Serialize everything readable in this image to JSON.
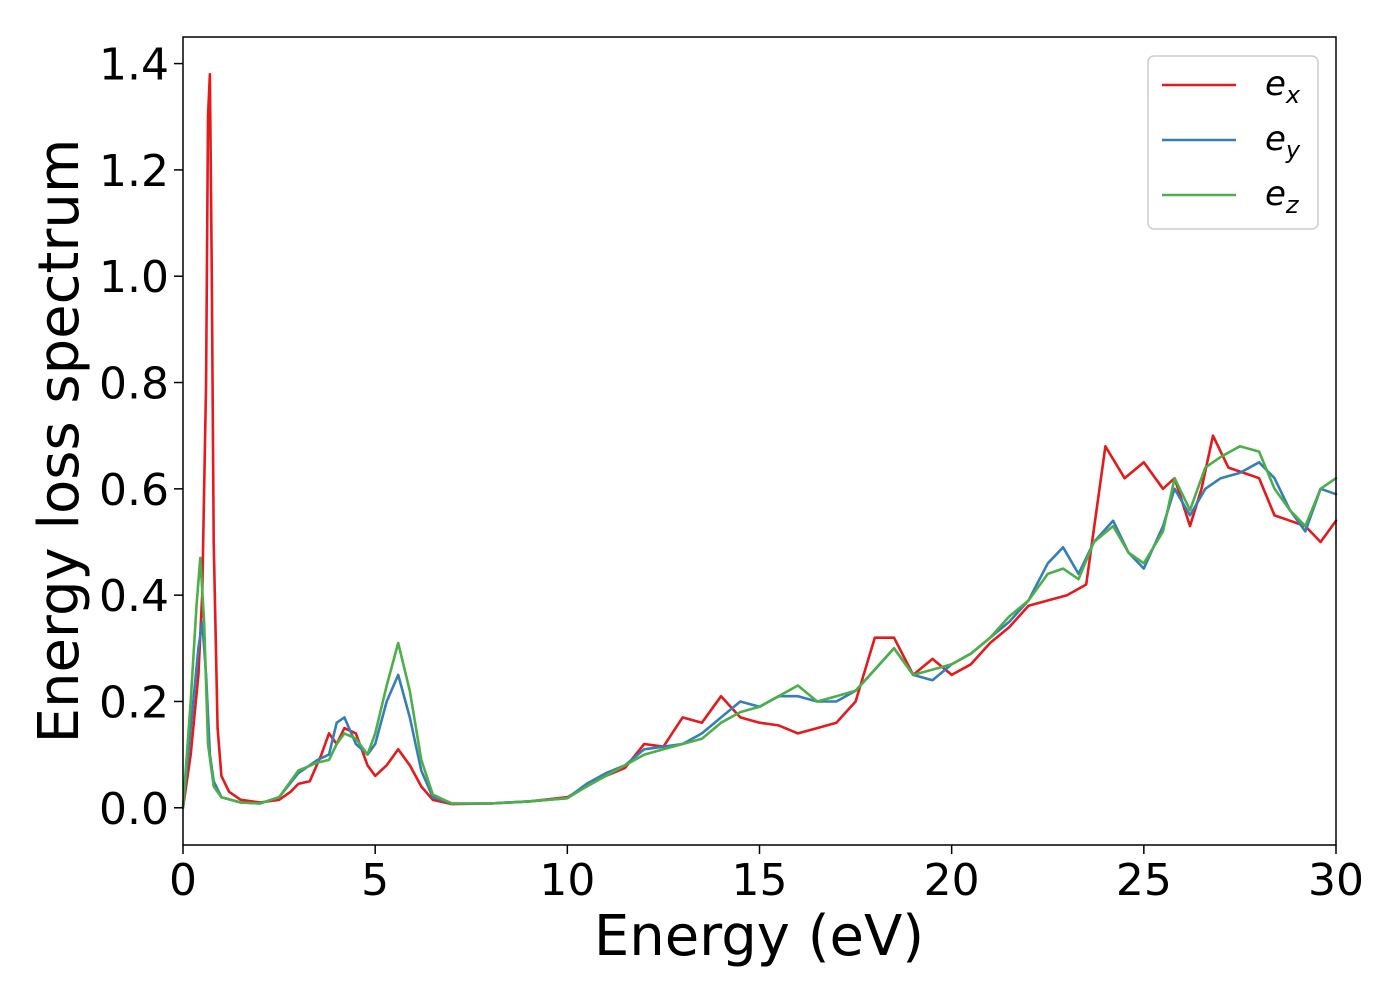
{
  "chart_data": {
    "type": "line",
    "title": "",
    "xlabel": "Energy (eV)",
    "ylabel": "Energy loss spectrum",
    "xlim": [
      0,
      30
    ],
    "ylim": [
      -0.07,
      1.45
    ],
    "xticks": [
      0,
      5,
      10,
      15,
      20,
      25,
      30
    ],
    "xtick_labels": [
      "0",
      "5",
      "10",
      "15",
      "20",
      "25",
      "30"
    ],
    "yticks": [
      0.0,
      0.2,
      0.4,
      0.6,
      0.8,
      1.0,
      1.2,
      1.4
    ],
    "ytick_labels": [
      "0.0",
      "0.2",
      "0.4",
      "0.6",
      "0.8",
      "1.0",
      "1.2",
      "1.4"
    ],
    "grid": false,
    "legend_position": "top-right",
    "series": [
      {
        "name": "e_x",
        "label_main": "e",
        "label_sub": "x",
        "color": "#e41a1c",
        "x": [
          0,
          0.2,
          0.4,
          0.5,
          0.6,
          0.65,
          0.7,
          0.75,
          0.8,
          0.9,
          1.0,
          1.2,
          1.5,
          2.0,
          2.5,
          2.8,
          3.0,
          3.3,
          3.6,
          3.8,
          4.0,
          4.2,
          4.5,
          4.8,
          5.0,
          5.3,
          5.6,
          5.9,
          6.2,
          6.5,
          7.0,
          8.0,
          9.0,
          10.0,
          10.5,
          11.0,
          11.5,
          12.0,
          12.5,
          13.0,
          13.5,
          14.0,
          14.5,
          15.0,
          15.5,
          16.0,
          16.5,
          17.0,
          17.5,
          18.0,
          18.5,
          19.0,
          19.5,
          20.0,
          20.5,
          21.0,
          21.5,
          22.0,
          22.5,
          23.0,
          23.5,
          24.0,
          24.5,
          25.0,
          25.5,
          25.8,
          26.2,
          26.5,
          26.8,
          27.2,
          27.6,
          28.0,
          28.4,
          28.8,
          29.2,
          29.6,
          30.0
        ],
        "y": [
          0.0,
          0.1,
          0.25,
          0.4,
          0.8,
          1.3,
          1.38,
          1.0,
          0.5,
          0.15,
          0.06,
          0.03,
          0.015,
          0.01,
          0.015,
          0.03,
          0.045,
          0.05,
          0.1,
          0.14,
          0.12,
          0.15,
          0.14,
          0.08,
          0.06,
          0.08,
          0.11,
          0.08,
          0.04,
          0.015,
          0.007,
          0.008,
          0.012,
          0.02,
          0.04,
          0.06,
          0.075,
          0.12,
          0.115,
          0.17,
          0.16,
          0.21,
          0.17,
          0.16,
          0.155,
          0.14,
          0.15,
          0.16,
          0.2,
          0.32,
          0.32,
          0.25,
          0.28,
          0.25,
          0.27,
          0.31,
          0.34,
          0.38,
          0.39,
          0.4,
          0.42,
          0.68,
          0.62,
          0.65,
          0.6,
          0.62,
          0.53,
          0.6,
          0.7,
          0.64,
          0.63,
          0.62,
          0.55,
          0.54,
          0.53,
          0.5,
          0.54
        ]
      },
      {
        "name": "e_y",
        "label_main": "e",
        "label_sub": "y",
        "color": "#377eb8",
        "x": [
          0,
          0.2,
          0.4,
          0.5,
          0.6,
          0.7,
          0.8,
          1.0,
          1.5,
          2.0,
          2.5,
          3.0,
          3.5,
          3.8,
          4.0,
          4.2,
          4.5,
          4.8,
          5.0,
          5.3,
          5.6,
          5.9,
          6.2,
          6.5,
          7.0,
          8.0,
          9.0,
          10.0,
          10.5,
          11.0,
          11.5,
          12.0,
          12.5,
          13.0,
          13.5,
          14.0,
          14.5,
          15.0,
          15.5,
          16.0,
          16.5,
          17.0,
          17.5,
          18.0,
          18.5,
          19.0,
          19.5,
          20.0,
          20.5,
          21.0,
          21.5,
          22.0,
          22.5,
          22.9,
          23.3,
          23.7,
          24.2,
          24.6,
          25.0,
          25.5,
          25.8,
          26.2,
          26.6,
          27.0,
          27.5,
          28.0,
          28.4,
          28.8,
          29.2,
          29.6,
          30.0
        ],
        "y": [
          0.0,
          0.15,
          0.3,
          0.35,
          0.25,
          0.1,
          0.05,
          0.02,
          0.01,
          0.008,
          0.02,
          0.065,
          0.09,
          0.1,
          0.16,
          0.17,
          0.12,
          0.1,
          0.12,
          0.2,
          0.25,
          0.17,
          0.07,
          0.02,
          0.008,
          0.008,
          0.012,
          0.018,
          0.045,
          0.065,
          0.08,
          0.11,
          0.115,
          0.12,
          0.14,
          0.17,
          0.2,
          0.19,
          0.21,
          0.21,
          0.2,
          0.2,
          0.22,
          0.26,
          0.3,
          0.25,
          0.24,
          0.27,
          0.29,
          0.32,
          0.35,
          0.39,
          0.46,
          0.49,
          0.44,
          0.5,
          0.54,
          0.48,
          0.45,
          0.53,
          0.6,
          0.55,
          0.6,
          0.62,
          0.63,
          0.65,
          0.62,
          0.56,
          0.52,
          0.6,
          0.59
        ]
      },
      {
        "name": "e_z",
        "label_main": "e",
        "label_sub": "z",
        "color": "#4daf4a",
        "x": [
          0,
          0.2,
          0.35,
          0.45,
          0.55,
          0.65,
          0.8,
          1.0,
          1.5,
          2.0,
          2.5,
          3.0,
          3.5,
          3.8,
          4.0,
          4.2,
          4.5,
          4.8,
          5.0,
          5.3,
          5.6,
          5.9,
          6.2,
          6.5,
          7.0,
          8.0,
          9.0,
          10.0,
          10.5,
          11.0,
          11.5,
          12.0,
          12.5,
          13.0,
          13.5,
          14.0,
          14.5,
          15.0,
          15.5,
          16.0,
          16.5,
          17.0,
          17.5,
          18.0,
          18.5,
          19.0,
          19.5,
          20.0,
          20.5,
          21.0,
          21.5,
          22.0,
          22.5,
          22.9,
          23.3,
          23.7,
          24.2,
          24.6,
          25.0,
          25.5,
          25.8,
          26.2,
          26.6,
          27.0,
          27.5,
          28.0,
          28.4,
          28.8,
          29.2,
          29.6,
          30.0
        ],
        "y": [
          0.0,
          0.2,
          0.38,
          0.47,
          0.35,
          0.12,
          0.04,
          0.02,
          0.01,
          0.008,
          0.02,
          0.07,
          0.085,
          0.09,
          0.12,
          0.14,
          0.13,
          0.1,
          0.14,
          0.23,
          0.31,
          0.22,
          0.09,
          0.025,
          0.008,
          0.008,
          0.012,
          0.018,
          0.04,
          0.06,
          0.08,
          0.1,
          0.11,
          0.12,
          0.13,
          0.16,
          0.18,
          0.19,
          0.21,
          0.23,
          0.2,
          0.21,
          0.22,
          0.26,
          0.3,
          0.25,
          0.26,
          0.27,
          0.29,
          0.32,
          0.36,
          0.39,
          0.44,
          0.45,
          0.43,
          0.5,
          0.53,
          0.48,
          0.46,
          0.52,
          0.62,
          0.56,
          0.64,
          0.66,
          0.68,
          0.67,
          0.6,
          0.56,
          0.53,
          0.6,
          0.62
        ]
      }
    ]
  }
}
